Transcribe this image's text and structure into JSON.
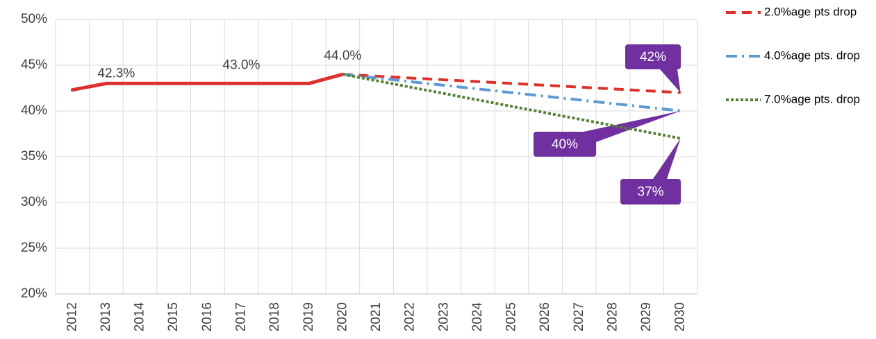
{
  "chart_data": {
    "type": "line",
    "categories": [
      "2012",
      "2013",
      "2014",
      "2015",
      "2016",
      "2017",
      "2018",
      "2019",
      "2020",
      "2021",
      "2022",
      "2023",
      "2024",
      "2025",
      "2026",
      "2027",
      "2028",
      "2029",
      "2030"
    ],
    "series": [
      {
        "values": [
          42.3,
          43.0,
          43.0,
          43.0,
          43.0,
          43.0,
          43.0,
          43.0,
          44.0,
          null,
          null,
          null,
          null,
          null,
          null,
          null,
          null,
          null,
          null
        ],
        "value_labels": [
          "42.3%",
          null,
          null,
          null,
          null,
          "43.0%",
          null,
          null,
          "44.0%",
          null,
          null,
          null,
          null,
          null,
          null,
          null,
          null,
          null,
          null
        ],
        "color": "#e0302b",
        "dash": "solid"
      },
      {
        "name": "2.0%age pts drop",
        "color": "#e0302b",
        "dash": "dashed",
        "values": [
          null,
          null,
          null,
          null,
          null,
          null,
          null,
          null,
          44.0,
          43.8,
          43.6,
          43.4,
          43.2,
          43.0,
          42.8,
          42.6,
          42.4,
          42.2,
          42.0
        ],
        "value_labels": [
          null,
          null,
          null,
          null,
          null,
          null,
          null,
          null,
          null,
          null,
          null,
          null,
          null,
          null,
          null,
          null,
          null,
          null,
          "42%"
        ]
      },
      {
        "name": "4.0%age pts. drop",
        "color": "#5b9bd5",
        "dash": "dashdot",
        "values": [
          null,
          null,
          null,
          null,
          null,
          null,
          null,
          null,
          44.0,
          43.6,
          43.2,
          42.8,
          42.4,
          42.0,
          41.6,
          41.2,
          40.8,
          40.4,
          40.0
        ],
        "value_labels": [
          null,
          null,
          null,
          null,
          null,
          null,
          null,
          null,
          null,
          null,
          null,
          null,
          null,
          null,
          null,
          null,
          null,
          null,
          "40%"
        ]
      },
      {
        "name": "7.0%age pts. drop",
        "color": "#548235",
        "dash": "dotted",
        "values": [
          null,
          null,
          null,
          null,
          null,
          null,
          null,
          null,
          44.0,
          43.3,
          42.6,
          41.9,
          41.2,
          40.5,
          39.8,
          39.1,
          38.4,
          37.7,
          37.0
        ],
        "value_labels": [
          null,
          null,
          null,
          null,
          null,
          null,
          null,
          null,
          null,
          null,
          null,
          null,
          null,
          null,
          null,
          null,
          null,
          null,
          "37%"
        ]
      }
    ],
    "callout_color": "#7030a0",
    "ylim": [
      20,
      50
    ],
    "yticks": [
      {
        "value": 20,
        "label": "20%"
      },
      {
        "value": 25,
        "label": "25%"
      },
      {
        "value": 30,
        "label": "30%"
      },
      {
        "value": 35,
        "label": "35%"
      },
      {
        "value": 40,
        "label": "40%"
      },
      {
        "value": 45,
        "label": "45%"
      },
      {
        "value": 50,
        "label": "50%"
      }
    ],
    "grid": true,
    "legend": "right"
  }
}
